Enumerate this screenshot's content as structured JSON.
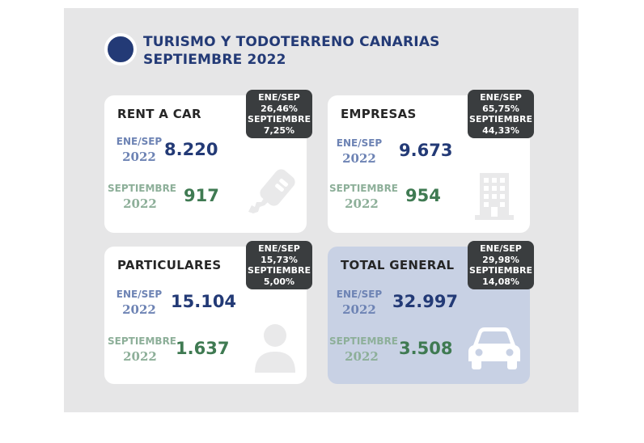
{
  "header": {
    "title_line1": "TURISMO Y TODOTERRENO CANARIAS",
    "title_line2": "SEPTIEMBRE 2022"
  },
  "cards": [
    {
      "title": "RENT A CAR",
      "badge": [
        "ENE/SEP",
        "26,46%",
        "SEPTIEMBRE",
        "7,25%"
      ],
      "period_label": [
        "ENE/SEP",
        "2022"
      ],
      "period_value": "8.220",
      "month_label": [
        "SEPTIEMBRE",
        "2022"
      ],
      "month_value": "917",
      "icon": "car-key-icon"
    },
    {
      "title": "EMPRESAS",
      "badge": [
        "ENE/SEP",
        "65,75%",
        "SEPTIEMBRE",
        "44,33%"
      ],
      "period_label": [
        "ENE/SEP",
        "2022"
      ],
      "period_value": "9.673",
      "month_label": [
        "SEPTIEMBRE",
        "2022"
      ],
      "month_value": "954",
      "icon": "office-building-icon"
    },
    {
      "title": "PARTICULARES",
      "badge": [
        "ENE/SEP",
        "15,73%",
        "SEPTIEMBRE",
        "5,00%"
      ],
      "period_label": [
        "ENE/SEP",
        "2022"
      ],
      "period_value": "15.104",
      "month_label": [
        "SEPTIEMBRE",
        "2022"
      ],
      "month_value": "1.637",
      "icon": "person-icon"
    },
    {
      "title": "TOTAL GENERAL",
      "badge": [
        "ENE/SEP",
        "29,98%",
        "SEPTIEMBRE",
        "14,08%"
      ],
      "period_label": [
        "ENE/SEP",
        "2022"
      ],
      "period_value": "32.997",
      "month_label": [
        "SEPTIEMBRE",
        "2022"
      ],
      "month_value": "3.508",
      "icon": "car-icon"
    }
  ],
  "colors": {
    "navy": "#233a76",
    "green": "#3f7a52",
    "badge": "#3a3d3f",
    "panel": "#e6e6e7",
    "total_card": "#c8d1e4"
  }
}
